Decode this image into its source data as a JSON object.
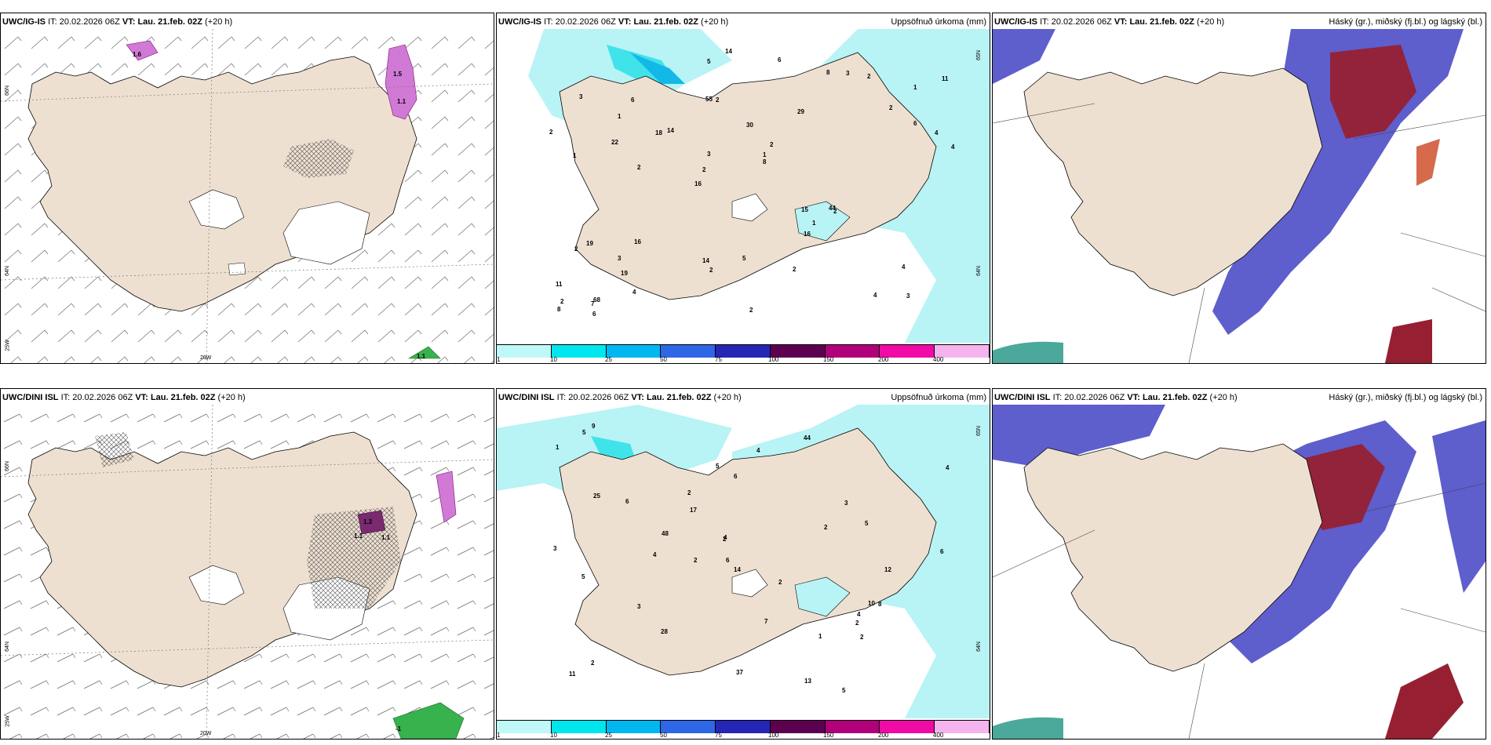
{
  "panels": {
    "p1": {
      "model": "UWC/IG-IS",
      "it_label": "IT:",
      "it": "20.02.2026 06Z",
      "vt_label": "VT:",
      "vt": "Lau. 21.feb. 02Z",
      "lead": "(+20 h)",
      "right": ""
    },
    "p2": {
      "model": "UWC/IG-IS",
      "it_label": "IT:",
      "it": "20.02.2026 06Z",
      "vt_label": "VT:",
      "vt": "Lau. 21.feb. 02Z",
      "lead": "(+20 h)",
      "right": "Uppsöfnuð úrkoma (mm)"
    },
    "p3": {
      "model": "UWC/IG-IS",
      "it_label": "IT:",
      "it": "20.02.2026 06Z",
      "vt_label": "VT:",
      "vt": "Lau. 21.feb. 02Z",
      "lead": "(+20 h)",
      "right": "Háský (gr.), miðský (fj.bl.) og lágský (bl.)"
    },
    "p4": {
      "model": "UWC/DINI ISL",
      "it_label": "IT:",
      "it": "20.02.2026 06Z",
      "vt_label": "VT:",
      "vt": "Lau. 21.feb. 02Z",
      "lead": "(+20 h)",
      "right": ""
    },
    "p5": {
      "model": "UWC/DINI ISL",
      "it_label": "IT:",
      "it": "20.02.2026 06Z",
      "vt_label": "VT:",
      "vt": "Lau. 21.feb. 02Z",
      "lead": "(+20 h)",
      "right": "Uppsöfnuð úrkoma (mm)"
    },
    "p6": {
      "model": "UWC/DINI ISL",
      "it_label": "IT:",
      "it": "20.02.2026 06Z",
      "vt_label": "VT:",
      "vt": "Lau. 21.feb. 02Z",
      "lead": "(+20 h)",
      "right": "Háský (gr.), miðský (fj.bl.) og lágský (bl.)"
    }
  },
  "graticule": {
    "lat66": "66N",
    "lat64": "64N",
    "lon25": "25W",
    "lon20": "20W",
    "lat65": "65N",
    "lat64b": "64N"
  },
  "legend": {
    "ticks": [
      "1",
      "10",
      "25",
      "50",
      "75",
      "100",
      "150",
      "200",
      "400"
    ],
    "colors": [
      "#bff8f8",
      "#00e6ee",
      "#00b8ef",
      "#2e67e6",
      "#2626b5",
      "#5c0050",
      "#b0007a",
      "#f00aa6",
      "#f5b4ee"
    ]
  },
  "colors": {
    "land": "#eee0d1",
    "precip_light": "#b8f3f5",
    "precip_mid": "#41e3ea",
    "cloud_low": "#4c4cc8",
    "cloud_high": "#962031",
    "coast": "#000000"
  },
  "precip_top": [
    "3",
    "1",
    "1",
    "16",
    "29",
    "68",
    "55",
    "30",
    "19",
    "14",
    "11",
    "19",
    "2",
    "2",
    "2",
    "3",
    "5",
    "4",
    "15",
    "6",
    "2",
    "14",
    "3",
    "6",
    "8",
    "16",
    "4",
    "4",
    "44",
    "2",
    "18",
    "22",
    "16",
    "4",
    "4",
    "1",
    "2",
    "2",
    "8",
    "2",
    "2",
    "11",
    "1",
    "2",
    "3",
    "6",
    "8",
    "5",
    "2",
    "14",
    "2",
    "2",
    "1",
    "3",
    "7",
    "6"
  ],
  "precip_bottom": [
    "4",
    "2",
    "17",
    "48",
    "44",
    "13",
    "4",
    "2",
    "2",
    "10",
    "11",
    "12",
    "6",
    "5",
    "5",
    "8",
    "9",
    "4",
    "4",
    "6",
    "3",
    "1",
    "37",
    "25",
    "28",
    "14",
    "6",
    "5",
    "5",
    "7",
    "2",
    "2",
    "3",
    "1",
    "5",
    "2",
    "2",
    "3",
    "4",
    "2",
    "6"
  ],
  "wind_labels": {
    "top": [
      "1.6",
      "1.5",
      "1.1",
      "1.1"
    ],
    "bottom": [
      "1.3",
      "1.1",
      "1.1",
      "-1"
    ]
  }
}
